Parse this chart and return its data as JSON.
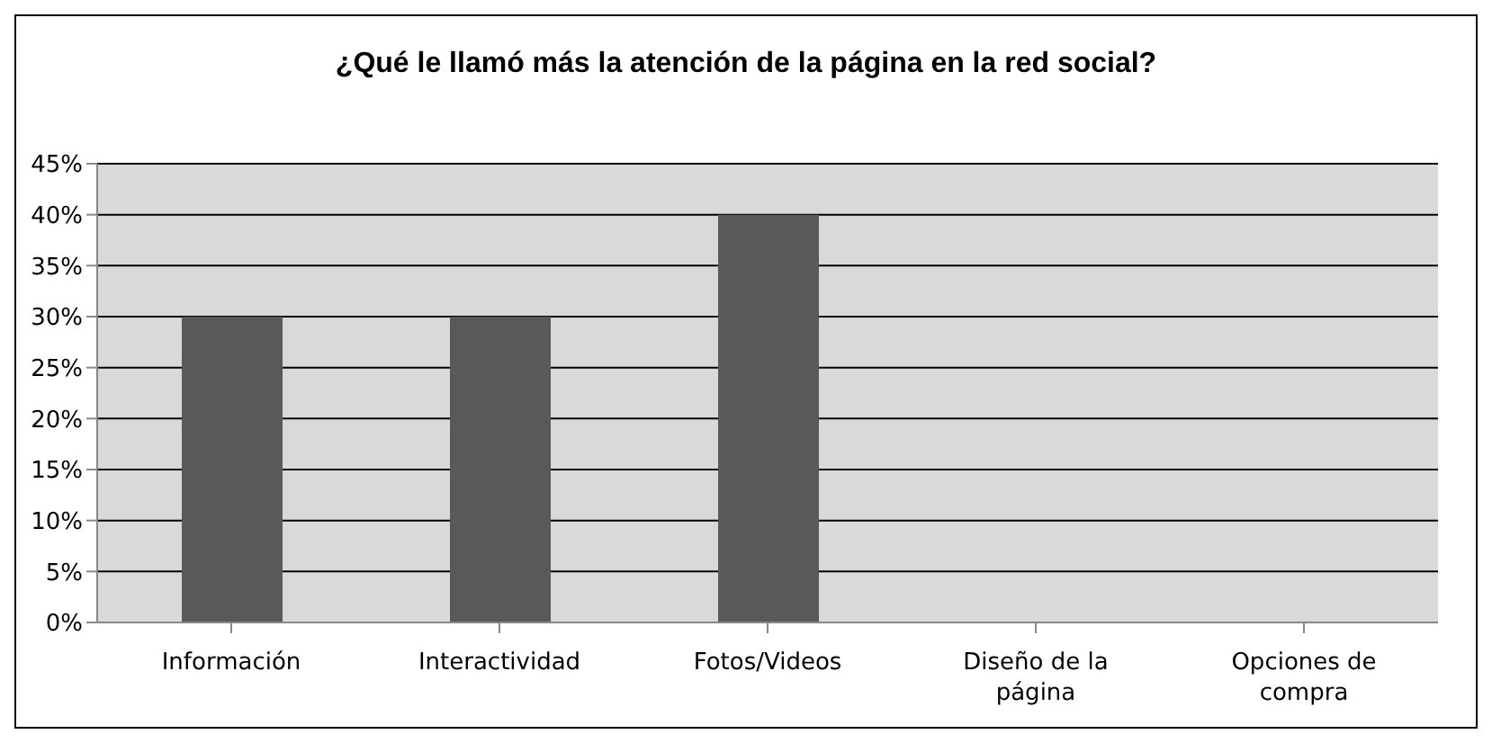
{
  "chart_data": {
    "type": "bar",
    "title": "¿Qué le llamó más la atención de la página en la red social?",
    "categories": [
      "Información",
      "Interactividad",
      "Fotos/Videos",
      "Diseño de la página",
      "Opciones de compra"
    ],
    "values": [
      30,
      30,
      40,
      0,
      0
    ],
    "color": "#595959",
    "ylim": [
      0,
      45
    ],
    "yticks": [
      {
        "value": 0,
        "label": "0%"
      },
      {
        "value": 5,
        "label": "5%"
      },
      {
        "value": 10,
        "label": "10%"
      },
      {
        "value": 15,
        "label": "15%"
      },
      {
        "value": 20,
        "label": "20%"
      },
      {
        "value": 25,
        "label": "25%"
      },
      {
        "value": 30,
        "label": "30%"
      },
      {
        "value": 35,
        "label": "35%"
      },
      {
        "value": 40,
        "label": "40%"
      },
      {
        "value": 45,
        "label": "45%"
      }
    ],
    "grid": "y",
    "legend": false
  }
}
